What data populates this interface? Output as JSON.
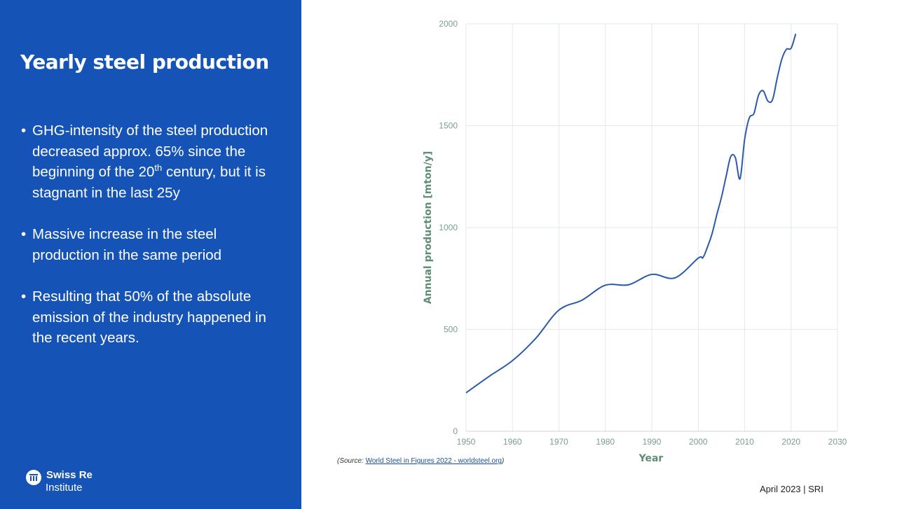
{
  "slide": {
    "title": "Yearly steel production",
    "bullets": [
      {
        "text_before": "GHG-intensity of the steel production decreased approx. 65% since the beginning of the 20",
        "superscript": "th",
        "text_after": " century, but it is stagnant in the last 25y"
      },
      {
        "text": "Massive increase in the steel production in the same period"
      },
      {
        "text": "Resulting that 50% of the absolute emission of the industry happened in the recent years."
      }
    ],
    "logo": {
      "line1": "Swiss Re",
      "line2": "Institute"
    },
    "source_prefix": "(Source: ",
    "source_link": "World Steel in Figures 2022 - worldsteel.org",
    "source_suffix": ")",
    "footer": "April 2023 | SRI",
    "colors": {
      "panel": "#1553b6",
      "line": "#2b5ba8",
      "axis_text": "#7a9e8c"
    }
  },
  "chart_data": {
    "type": "line",
    "title": "",
    "xlabel": "Year",
    "ylabel": "Annual production [mton/y]",
    "xlim": [
      1950,
      2030
    ],
    "ylim": [
      0,
      2000
    ],
    "xticks": [
      "1950",
      "1960",
      "1970",
      "1980",
      "1990",
      "2000",
      "2010",
      "2020",
      "2030"
    ],
    "yticks": [
      "0",
      "500",
      "1000",
      "1500",
      "2000"
    ],
    "grid": true,
    "x": [
      1950,
      1955,
      1960,
      1965,
      1970,
      1975,
      1980,
      1985,
      1990,
      1995,
      2000,
      2001,
      2002,
      2003,
      2004,
      2005,
      2006,
      2007,
      2008,
      2009,
      2010,
      2011,
      2012,
      2013,
      2014,
      2015,
      2016,
      2017,
      2018,
      2019,
      2020,
      2021
    ],
    "y": [
      189,
      270,
      347,
      456,
      595,
      644,
      717,
      719,
      770,
      753,
      850,
      852,
      905,
      971,
      1063,
      1148,
      1250,
      1348,
      1343,
      1239,
      1433,
      1538,
      1560,
      1650,
      1671,
      1621,
      1627,
      1732,
      1826,
      1875,
      1880,
      1951
    ]
  }
}
